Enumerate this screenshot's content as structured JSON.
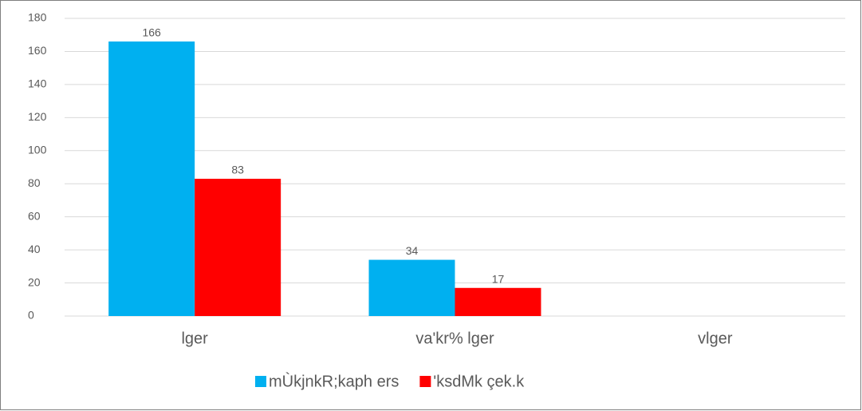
{
  "chart_data": {
    "type": "bar",
    "categories": [
      "lger",
      "va'kr% lger",
      "vlger"
    ],
    "series": [
      {
        "name": "mÙkjnkR;kaph ers",
        "color": "#00b0f0",
        "values": [
          166,
          34,
          null
        ]
      },
      {
        "name": "'ksdMk çek.k",
        "color": "#ff0000",
        "values": [
          83,
          17,
          null
        ]
      }
    ],
    "ylim": [
      0,
      180
    ],
    "yticks": [
      0,
      20,
      40,
      60,
      80,
      100,
      120,
      140,
      160,
      180
    ],
    "grid": true,
    "legend": "bottom"
  }
}
